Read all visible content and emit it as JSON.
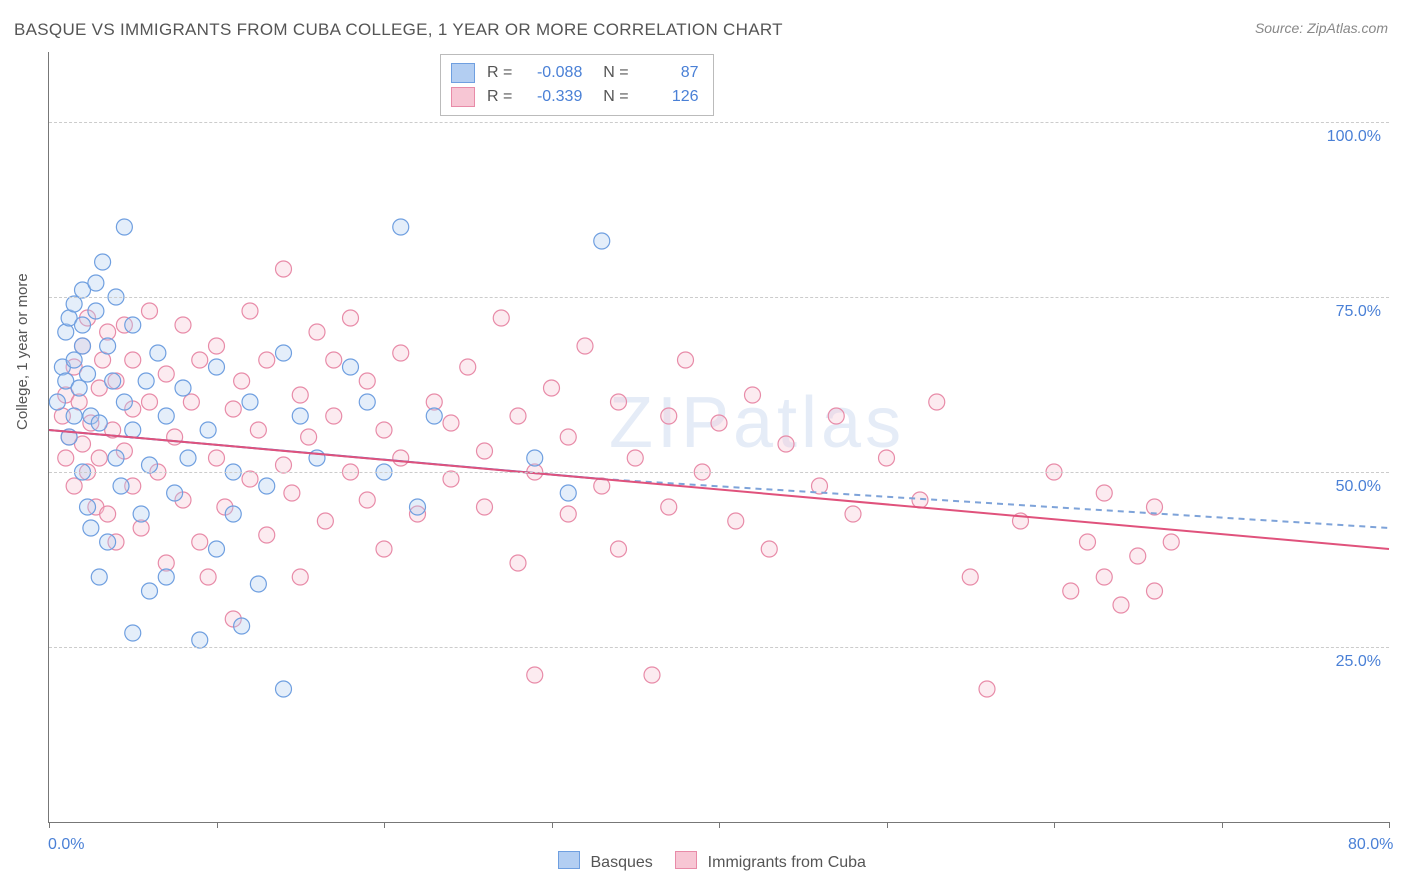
{
  "title": "BASQUE VS IMMIGRANTS FROM CUBA COLLEGE, 1 YEAR OR MORE CORRELATION CHART",
  "source": "Source: ZipAtlas.com",
  "ylabel": "College, 1 year or more",
  "watermark": {
    "text": "ZIPatlas",
    "color": "#e5ecf7",
    "fontsize": 72
  },
  "chart": {
    "type": "scatter",
    "xlim": [
      0,
      80
    ],
    "ylim": [
      0,
      110
    ],
    "xticks": [
      0,
      10,
      20,
      30,
      40,
      50,
      60,
      70,
      80
    ],
    "xtick_labels": {
      "0": "0.0%",
      "80": "80.0%"
    },
    "ygrid": [
      25,
      50,
      75,
      100
    ],
    "ytick_labels": {
      "25": "25.0%",
      "50": "50.0%",
      "75": "75.0%",
      "100": "100.0%"
    },
    "grid_color": "#cccccc",
    "axis_color": "#777777",
    "background_color": "#ffffff",
    "marker_radius": 8,
    "marker_stroke_width": 1.2,
    "marker_fill_opacity": 0.35,
    "series": [
      {
        "name": "Basques",
        "color_stroke": "#6f9fe0",
        "color_fill": "#b3cef2",
        "R": "-0.088",
        "N": "87",
        "trend": {
          "x1": 0,
          "y1": 56,
          "x2": 33,
          "y2": 49,
          "extend_x2": 80,
          "extend_y2": 42,
          "solid_color": "#3a6fd0",
          "dash_color": "#7ea3d9",
          "width": 2
        },
        "points": [
          [
            0.5,
            60
          ],
          [
            0.8,
            65
          ],
          [
            1,
            63
          ],
          [
            1,
            70
          ],
          [
            1.2,
            55
          ],
          [
            1.2,
            72
          ],
          [
            1.5,
            58
          ],
          [
            1.5,
            66
          ],
          [
            1.5,
            74
          ],
          [
            1.8,
            62
          ],
          [
            2,
            50
          ],
          [
            2,
            68
          ],
          [
            2,
            71
          ],
          [
            2,
            76
          ],
          [
            2.3,
            45
          ],
          [
            2.3,
            64
          ],
          [
            2.5,
            42
          ],
          [
            2.5,
            58
          ],
          [
            2.8,
            73
          ],
          [
            2.8,
            77
          ],
          [
            3,
            35
          ],
          [
            3,
            57
          ],
          [
            3.2,
            80
          ],
          [
            3.5,
            40
          ],
          [
            3.5,
            68
          ],
          [
            3.8,
            63
          ],
          [
            4,
            52
          ],
          [
            4,
            75
          ],
          [
            4.3,
            48
          ],
          [
            4.5,
            60
          ],
          [
            4.5,
            85
          ],
          [
            5,
            71
          ],
          [
            5,
            56
          ],
          [
            5,
            27
          ],
          [
            5.5,
            44
          ],
          [
            5.8,
            63
          ],
          [
            6,
            51
          ],
          [
            6,
            33
          ],
          [
            6.5,
            67
          ],
          [
            7,
            58
          ],
          [
            7,
            35
          ],
          [
            7.5,
            47
          ],
          [
            8,
            62
          ],
          [
            8.3,
            52
          ],
          [
            9,
            26
          ],
          [
            9.5,
            56
          ],
          [
            10,
            65
          ],
          [
            10,
            39
          ],
          [
            11,
            50
          ],
          [
            11,
            44
          ],
          [
            11.5,
            28
          ],
          [
            12,
            60
          ],
          [
            12.5,
            34
          ],
          [
            13,
            48
          ],
          [
            14,
            67
          ],
          [
            14,
            19
          ],
          [
            15,
            58
          ],
          [
            16,
            52
          ],
          [
            18,
            65
          ],
          [
            19,
            60
          ],
          [
            20,
            50
          ],
          [
            21,
            85
          ],
          [
            22,
            45
          ],
          [
            23,
            58
          ],
          [
            29,
            52
          ],
          [
            31,
            47
          ],
          [
            33,
            83
          ]
        ]
      },
      {
        "name": "Immigrants from Cuba",
        "color_stroke": "#e88ba8",
        "color_fill": "#f7c6d4",
        "R": "-0.339",
        "N": "126",
        "trend": {
          "x1": 0,
          "y1": 56,
          "x2": 80,
          "y2": 39,
          "solid_color": "#e0527c",
          "width": 2
        },
        "points": [
          [
            0.8,
            58
          ],
          [
            1,
            52
          ],
          [
            1,
            61
          ],
          [
            1.2,
            55
          ],
          [
            1.5,
            48
          ],
          [
            1.5,
            65
          ],
          [
            1.8,
            60
          ],
          [
            2,
            54
          ],
          [
            2,
            68
          ],
          [
            2.3,
            50
          ],
          [
            2.3,
            72
          ],
          [
            2.5,
            57
          ],
          [
            2.8,
            45
          ],
          [
            3,
            62
          ],
          [
            3,
            52
          ],
          [
            3.2,
            66
          ],
          [
            3.5,
            44
          ],
          [
            3.5,
            70
          ],
          [
            3.8,
            56
          ],
          [
            4,
            40
          ],
          [
            4,
            63
          ],
          [
            4.5,
            53
          ],
          [
            4.5,
            71
          ],
          [
            5,
            48
          ],
          [
            5,
            59
          ],
          [
            5,
            66
          ],
          [
            5.5,
            42
          ],
          [
            6,
            60
          ],
          [
            6,
            73
          ],
          [
            6.5,
            50
          ],
          [
            7,
            37
          ],
          [
            7,
            64
          ],
          [
            7.5,
            55
          ],
          [
            8,
            46
          ],
          [
            8,
            71
          ],
          [
            8.5,
            60
          ],
          [
            9,
            40
          ],
          [
            9,
            66
          ],
          [
            9.5,
            35
          ],
          [
            10,
            68
          ],
          [
            10,
            52
          ],
          [
            10.5,
            45
          ],
          [
            11,
            59
          ],
          [
            11,
            29
          ],
          [
            11.5,
            63
          ],
          [
            12,
            49
          ],
          [
            12,
            73
          ],
          [
            12.5,
            56
          ],
          [
            13,
            41
          ],
          [
            13,
            66
          ],
          [
            14,
            51
          ],
          [
            14,
            79
          ],
          [
            14.5,
            47
          ],
          [
            15,
            61
          ],
          [
            15,
            35
          ],
          [
            15.5,
            55
          ],
          [
            16,
            70
          ],
          [
            16.5,
            43
          ],
          [
            17,
            58
          ],
          [
            17,
            66
          ],
          [
            18,
            50
          ],
          [
            18,
            72
          ],
          [
            19,
            46
          ],
          [
            19,
            63
          ],
          [
            20,
            56
          ],
          [
            20,
            39
          ],
          [
            21,
            67
          ],
          [
            21,
            52
          ],
          [
            22,
            44
          ],
          [
            23,
            60
          ],
          [
            24,
            49
          ],
          [
            24,
            57
          ],
          [
            25,
            65
          ],
          [
            26,
            53
          ],
          [
            26,
            45
          ],
          [
            27,
            72
          ],
          [
            28,
            37
          ],
          [
            28,
            58
          ],
          [
            29,
            50
          ],
          [
            29,
            21
          ],
          [
            30,
            62
          ],
          [
            31,
            44
          ],
          [
            31,
            55
          ],
          [
            32,
            68
          ],
          [
            33,
            48
          ],
          [
            34,
            60
          ],
          [
            34,
            39
          ],
          [
            35,
            52
          ],
          [
            36,
            21
          ],
          [
            37,
            58
          ],
          [
            37,
            45
          ],
          [
            38,
            66
          ],
          [
            39,
            50
          ],
          [
            40,
            57
          ],
          [
            41,
            43
          ],
          [
            42,
            61
          ],
          [
            43,
            39
          ],
          [
            44,
            54
          ],
          [
            46,
            48
          ],
          [
            47,
            58
          ],
          [
            48,
            44
          ],
          [
            50,
            52
          ],
          [
            52,
            46
          ],
          [
            53,
            60
          ],
          [
            55,
            35
          ],
          [
            56,
            19
          ],
          [
            58,
            43
          ],
          [
            60,
            50
          ],
          [
            61,
            33
          ],
          [
            62,
            40
          ],
          [
            63,
            47
          ],
          [
            63,
            35
          ],
          [
            64,
            31
          ],
          [
            65,
            38
          ],
          [
            66,
            45
          ],
          [
            66,
            33
          ],
          [
            67,
            40
          ]
        ]
      }
    ]
  },
  "legend_bottom": [
    {
      "label": "Basques",
      "stroke": "#6f9fe0",
      "fill": "#b3cef2"
    },
    {
      "label": "Immigrants from Cuba",
      "stroke": "#e88ba8",
      "fill": "#f7c6d4"
    }
  ]
}
